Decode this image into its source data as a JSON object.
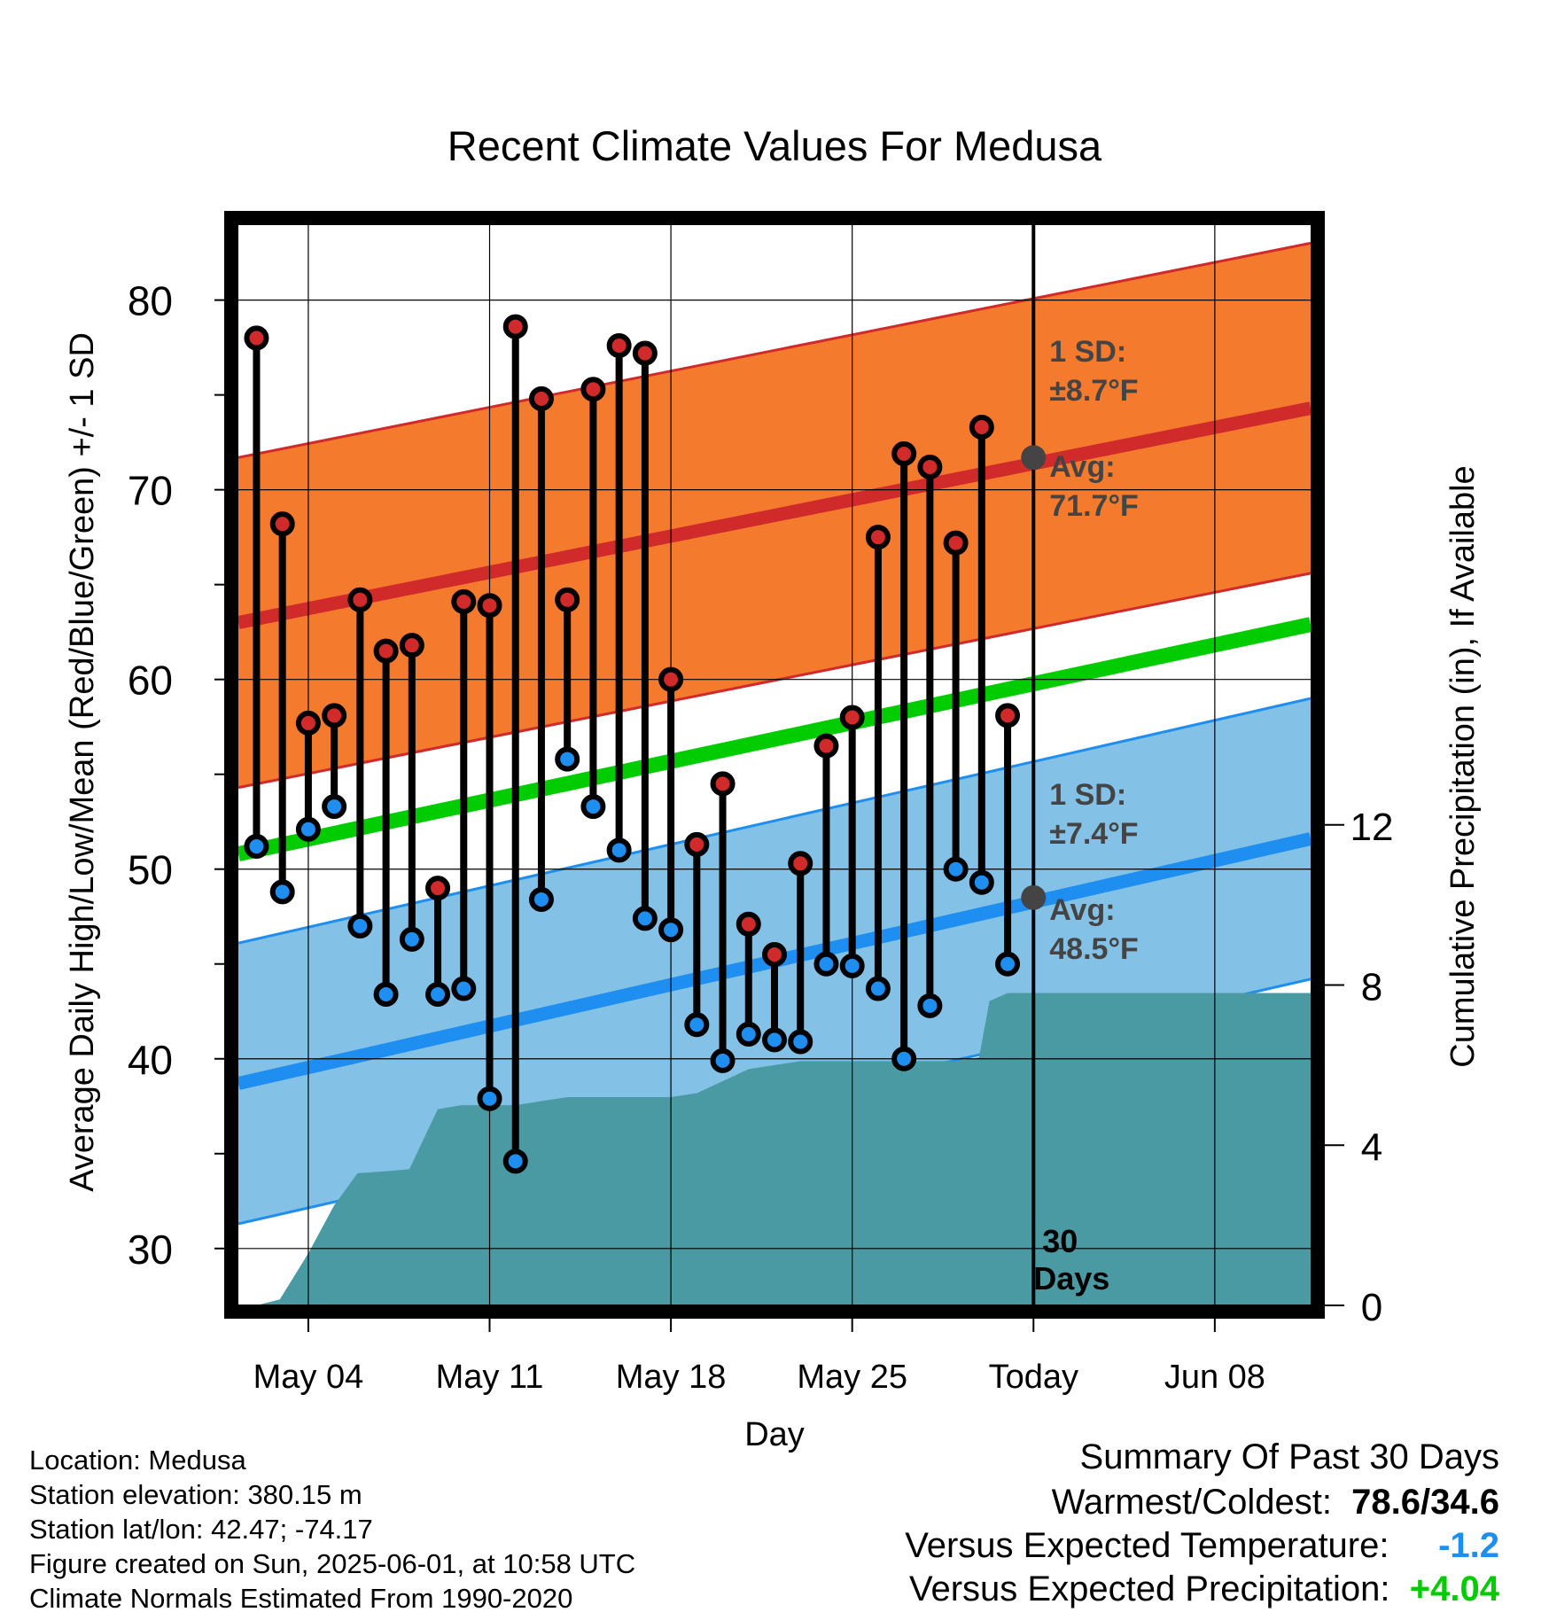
{
  "chart_data": {
    "type": "line",
    "title": "Recent Climate Values For Medusa",
    "xlabel": "Day",
    "ylabel": "Average Daily High/Low/Mean (Red/Blue/Green) +/- 1 SD",
    "y2label": "Cumulative Precipitation (in), If Available",
    "x_tick_labels": [
      "May 04",
      "May 11",
      "May 18",
      "May 25",
      "Today",
      "Jun 08"
    ],
    "y_ticks": [
      30,
      40,
      50,
      60,
      70,
      80
    ],
    "y2_ticks": [
      0,
      4,
      8,
      12
    ],
    "ylim": [
      27,
      84
    ],
    "y2lim": [
      0,
      27
    ],
    "x_range_days_from_may01": [
      0.3,
      41.7
    ],
    "grid": true,
    "colors": {
      "high_band": "#f47a2e",
      "high_avg": "#d02a2a",
      "low_band": "#84c1e6",
      "low_avg": "#1e8ef0",
      "mean": "#00cc00",
      "precip": "#4a9aa4",
      "high_marker": "#d02a2a",
      "low_marker": "#1e8ef0"
    },
    "normals": {
      "high_avg": {
        "start": 63.0,
        "end": 74.3
      },
      "high_sd": 8.7,
      "low_avg": {
        "start": 38.7,
        "end": 51.6
      },
      "low_sd": 7.4,
      "mean": {
        "start": 50.8,
        "end": 62.9
      }
    },
    "series": [
      {
        "name": "High",
        "x": [
          1,
          2,
          3,
          4,
          5,
          6,
          7,
          8,
          9,
          10,
          11,
          12,
          13,
          14,
          15,
          16,
          17,
          18,
          19,
          20,
          21,
          22,
          23,
          24,
          25,
          26,
          27,
          28,
          29,
          30
        ],
        "values": [
          78.0,
          68.2,
          57.7,
          58.1,
          64.2,
          61.5,
          61.8,
          49.0,
          64.1,
          63.9,
          78.6,
          74.8,
          64.2,
          75.3,
          77.6,
          77.2,
          60.0,
          51.3,
          54.5,
          47.1,
          45.5,
          50.3,
          56.5,
          58.0,
          67.5,
          71.9,
          71.2,
          67.2,
          73.3,
          58.1
        ]
      },
      {
        "name": "Low",
        "x": [
          1,
          2,
          3,
          4,
          5,
          6,
          7,
          8,
          9,
          10,
          11,
          12,
          13,
          14,
          15,
          16,
          17,
          18,
          19,
          20,
          21,
          22,
          23,
          24,
          25,
          26,
          27,
          28,
          29,
          30
        ],
        "values": [
          51.2,
          48.8,
          52.1,
          53.3,
          47.0,
          43.4,
          46.3,
          43.4,
          43.7,
          37.9,
          34.6,
          48.4,
          55.8,
          53.3,
          51.0,
          47.4,
          46.8,
          41.8,
          39.9,
          41.3,
          41.0,
          40.9,
          45.0,
          44.9,
          43.7,
          40.0,
          42.8,
          50.0,
          49.3,
          45.0
        ]
      },
      {
        "name": "Precipitation",
        "x": [
          0.3,
          1.0,
          1.9,
          3.0,
          4.0,
          4.9,
          6.0,
          6.9,
          8.0,
          8.9,
          10.0,
          11.0,
          12.0,
          13.0,
          14.0,
          15.0,
          16.0,
          17.0,
          18.0,
          19.0,
          20.0,
          21.0,
          22.0,
          23.0,
          24.0,
          25.0,
          26.0,
          27.0,
          28.0,
          28.9,
          29.3,
          30.0,
          41.7
        ],
        "values": [
          0,
          0,
          0.15,
          1.3,
          2.5,
          3.3,
          3.35,
          3.4,
          4.9,
          5.0,
          5.0,
          5.0,
          5.1,
          5.2,
          5.2,
          5.2,
          5.2,
          5.2,
          5.3,
          5.6,
          5.9,
          6.0,
          6.1,
          6.1,
          6.1,
          6.1,
          6.1,
          6.1,
          6.1,
          6.2,
          7.6,
          7.8,
          7.8
        ]
      }
    ],
    "annotations": {
      "high_sd_label": "1 SD:",
      "high_sd_value": "±8.7°F",
      "high_avg_label": "Avg:",
      "high_avg_value": "71.7°F",
      "high_avg_today": 71.7,
      "low_sd_label": "1 SD:",
      "low_sd_value": "±7.4°F",
      "low_avg_label": "Avg:",
      "low_avg_value": "48.5°F",
      "low_avg_today": 48.5,
      "days_num": "30",
      "days_word": "Days"
    }
  },
  "meta": {
    "location": "Location: Medusa",
    "elevation": "Station elevation: 380.15 m",
    "latlon": "Station lat/lon: 42.47; -74.17",
    "created": "Figure created on Sun, 2025-06-01, at 10:58 UTC",
    "normals": "Climate Normals Estimated From 1990-2020"
  },
  "summary": {
    "title": "Summary Of Past 30 Days",
    "warm_cold_label": "Warmest/Coldest:",
    "warm_cold_value": "78.6/34.6",
    "temp_label": "Versus Expected Temperature:",
    "temp_value": "-1.2",
    "temp_color": "#1e8ef0",
    "precip_label": "Versus Expected Precipitation:",
    "precip_value": "+4.04",
    "precip_color": "#00cc00"
  }
}
